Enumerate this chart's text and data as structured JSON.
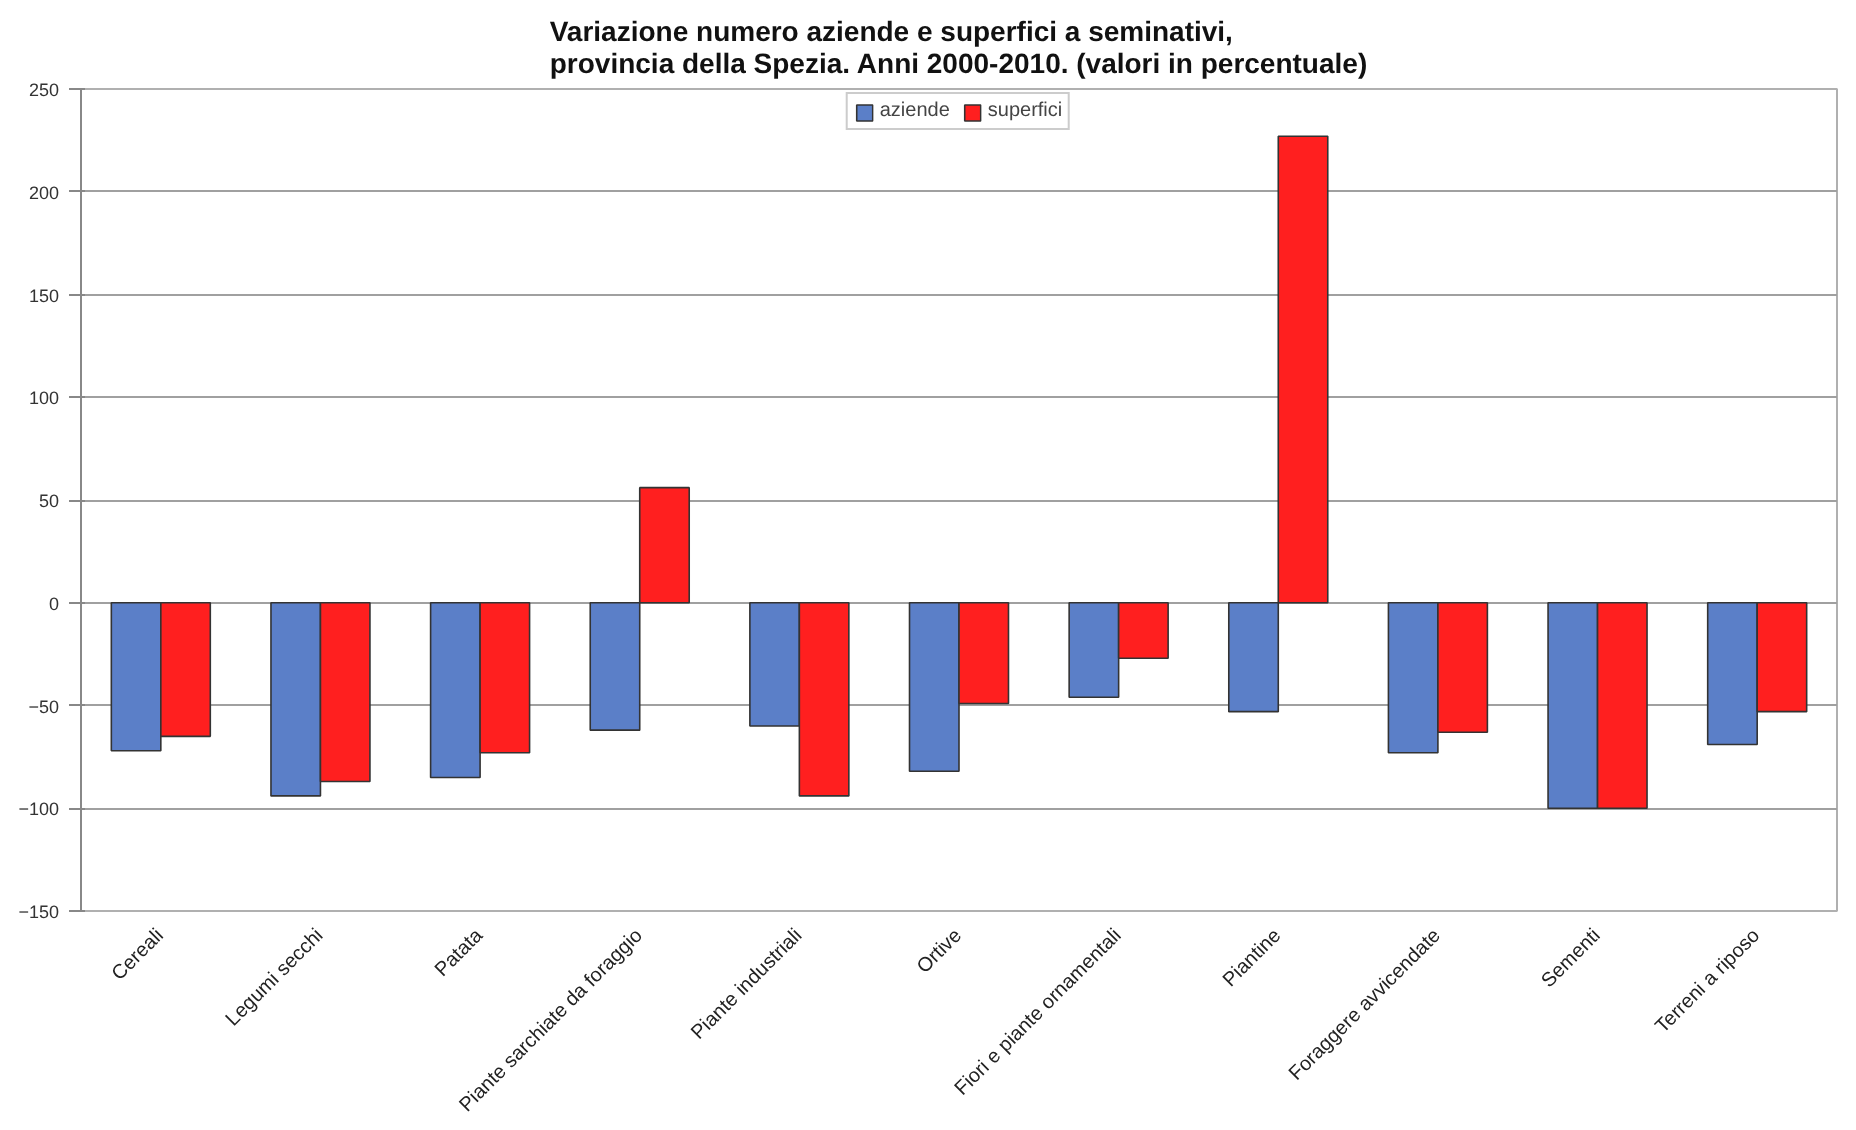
{
  "chart_data": {
    "type": "bar",
    "title": "Variazione numero aziende e superfici a seminativi,\nprovincia della Spezia. Anni 2000-2010. (valori in percentuale)",
    "categories": [
      "Cereali",
      "Legumi secchi",
      "Patata",
      "Piante sarchiate da foraggio",
      "Piante industriali",
      "Ortive",
      "Fiori e piante ornamentali",
      "Piantine",
      "Foraggere avvicendate",
      "Sementi",
      "Terreni a riposo"
    ],
    "series": [
      {
        "name": "aziende",
        "color": "#5b7fc8",
        "values": [
          -72,
          -94,
          -85,
          -62,
          -60,
          -82,
          -46,
          -53,
          -73,
          -100,
          -69
        ]
      },
      {
        "name": "superfici",
        "color": "#ff1f1f",
        "values": [
          -65,
          -87,
          -73,
          56,
          -94,
          -49,
          -27,
          227,
          -63,
          -100,
          -53
        ]
      }
    ],
    "ylim": [
      -150,
      250
    ],
    "yticks": [
      250,
      200,
      150,
      100,
      50,
      0,
      -50,
      -100,
      -150
    ],
    "grid": "y",
    "legend": "top"
  }
}
